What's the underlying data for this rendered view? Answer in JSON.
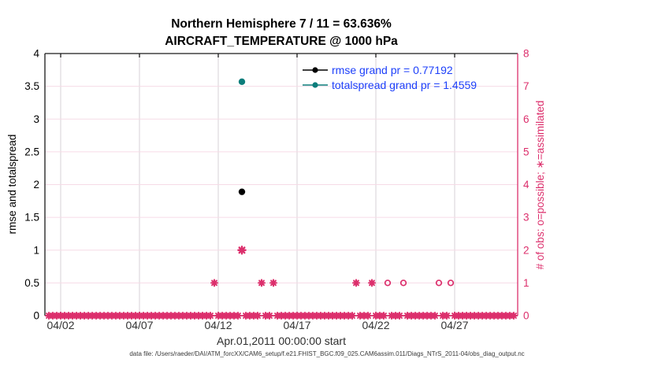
{
  "chart_data": {
    "type": "scatter",
    "title_line1": "Northern Hemisphere 7 / 11 = 63.636%",
    "title_line2": "AIRCRAFT_TEMPERATURE @ 1000 hPa",
    "xlabel": "Apr.01,2011 00:00:00 start",
    "ylabel_left": "rmse and totalspread",
    "ylabel_right": "# of obs: o=possible; ∗=assimilated",
    "x_axis": {
      "start_label": "Apr.01,2011 00:00:00",
      "range_days": [
        0,
        30
      ],
      "tick_days": [
        1,
        6,
        11,
        16,
        21,
        26
      ],
      "tick_labels": [
        "04/02",
        "04/07",
        "04/12",
        "04/17",
        "04/22",
        "04/27"
      ],
      "grid": true
    },
    "y_axis_left": {
      "min": 0,
      "max": 4,
      "tick_values": [
        0,
        0.5,
        1,
        1.5,
        2,
        2.5,
        3,
        3.5,
        4
      ],
      "tick_labels": [
        "0",
        "0.5",
        "1",
        "1.5",
        "2",
        "2.5",
        "3",
        "3.5",
        "4"
      ],
      "grid": true
    },
    "y_axis_right": {
      "min": 0,
      "max": 8,
      "tick_values": [
        0,
        1,
        2,
        3,
        4,
        5,
        6,
        7,
        8
      ],
      "tick_labels": [
        "0",
        "1",
        "2",
        "3",
        "4",
        "5",
        "6",
        "7",
        "8"
      ]
    },
    "legend": [
      {
        "label": "rmse grand pr = 0.77192",
        "color": "#000000",
        "marker": "line-dot"
      },
      {
        "label": "totalspread grand pr = 1.4559",
        "color": "#0c7d7b",
        "marker": "line-dot"
      }
    ],
    "legend_position": "top-right-inside",
    "series": {
      "rmse_points": [
        {
          "day": 12.5,
          "value": 1.89
        }
      ],
      "totalspread_points": [
        {
          "day": 12.5,
          "value": 3.57
        }
      ],
      "assimilated_obs_counts": [
        {
          "day": 10.75,
          "count": 1
        },
        {
          "day": 12.5,
          "count": 2
        },
        {
          "day": 13.75,
          "count": 1
        },
        {
          "day": 14.5,
          "count": 1
        },
        {
          "day": 19.75,
          "count": 1
        },
        {
          "day": 20.75,
          "count": 1
        }
      ],
      "possible_only_obs_counts": [
        {
          "day": 21.75,
          "count": 1
        },
        {
          "day": 22.75,
          "count": 1
        },
        {
          "day": 25.0,
          "count": 1
        },
        {
          "day": 25.75,
          "count": 1
        }
      ],
      "zero_obs_band": {
        "start_day": 0.25,
        "end_day": 29.75,
        "step_day": 0.25
      }
    },
    "colors": {
      "obs_pink": "#dc2f6c",
      "grid_pink": "#f6dbe6",
      "grid_gray": "#d7d2d7",
      "rmse_black": "#000000",
      "totalspread_teal": "#0c7d7b",
      "legend_text_blue": "#1c3ffa",
      "axis_black": "#1a1a1a",
      "tick_text_dark": "#333333"
    }
  },
  "footer": {
    "datafile": "data file: /Users/raeder/DAI/ATM_forcXX/CAM6_setup/f.e21.FHIST_BGC.f09_025.CAM6assim.011/Diags_NTrS_2011-04/obs_diag_output.nc"
  }
}
